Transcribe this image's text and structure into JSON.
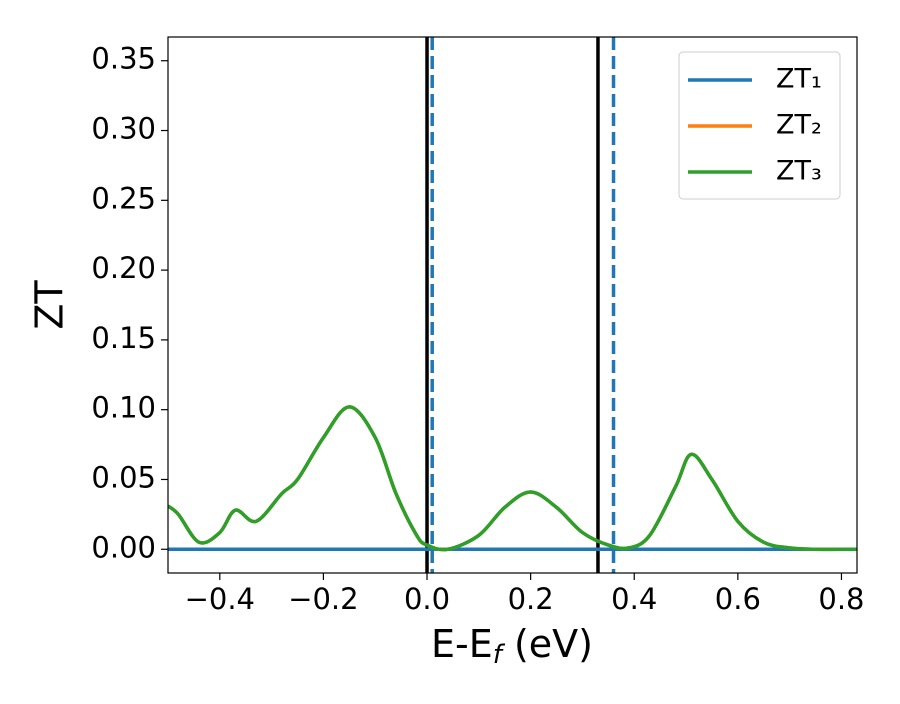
{
  "chart_data": {
    "type": "line",
    "xlabel": {
      "text": "E-E",
      "sub": "f",
      "rest": " (eV)"
    },
    "ylabel": "ZT",
    "x": [
      -0.5,
      -0.48,
      -0.44,
      -0.4,
      -0.37,
      -0.33,
      -0.28,
      -0.25,
      -0.2,
      -0.15,
      -0.1,
      -0.06,
      -0.02,
      0.0,
      0.04,
      0.1,
      0.15,
      0.2,
      0.25,
      0.3,
      0.35,
      0.39,
      0.43,
      0.48,
      0.51,
      0.55,
      0.6,
      0.65,
      0.7,
      0.75,
      0.83
    ],
    "series": [
      {
        "name": "ZT₁",
        "color": "#1f77b4",
        "values": [
          0,
          0,
          0,
          0,
          0,
          0,
          0,
          0,
          0,
          0,
          0,
          0,
          0,
          0,
          0,
          0,
          0,
          0,
          0,
          0,
          0,
          0,
          0,
          0,
          0,
          0,
          0,
          0,
          0,
          0,
          0
        ]
      },
      {
        "name": "ZT₂",
        "color": "#ff7f0e",
        "values": [
          0.031,
          0.025,
          0.005,
          0.012,
          0.028,
          0.02,
          0.04,
          0.05,
          0.08,
          0.102,
          0.08,
          0.04,
          0.01,
          0.003,
          0.0,
          0.01,
          0.03,
          0.041,
          0.03,
          0.012,
          0.003,
          0.001,
          0.01,
          0.045,
          0.068,
          0.05,
          0.02,
          0.005,
          0.001,
          0.0,
          0.0
        ]
      },
      {
        "name": "ZT₃",
        "color": "#2ca02c",
        "values": [
          0.031,
          0.025,
          0.005,
          0.012,
          0.028,
          0.02,
          0.04,
          0.05,
          0.08,
          0.102,
          0.08,
          0.04,
          0.01,
          0.003,
          0.0,
          0.01,
          0.03,
          0.041,
          0.03,
          0.012,
          0.003,
          0.001,
          0.01,
          0.045,
          0.068,
          0.05,
          0.02,
          0.005,
          0.001,
          0.0,
          0.0
        ]
      }
    ],
    "vlines": [
      {
        "x": 0.0,
        "color": "#000000",
        "style": "solid"
      },
      {
        "x": 0.33,
        "color": "#000000",
        "style": "solid"
      },
      {
        "x": 0.01,
        "color": "#1f77b4",
        "style": "dashed"
      },
      {
        "x": 0.36,
        "color": "#1f77b4",
        "style": "dashed"
      }
    ],
    "xlim": [
      -0.5,
      0.83
    ],
    "ylim": [
      -0.017,
      0.367
    ],
    "xticks": [
      {
        "value": -0.4,
        "label": "−0.4"
      },
      {
        "value": -0.2,
        "label": "−0.2"
      },
      {
        "value": 0.0,
        "label": "0.0"
      },
      0.2,
      0.4,
      0.6,
      0.8
    ],
    "yticks": [
      {
        "value": 0,
        "label": "0.00"
      },
      {
        "value": 0.05,
        "label": "0.05"
      },
      {
        "value": 0.1,
        "label": "0.10"
      },
      {
        "value": 0.15,
        "label": "0.15"
      },
      {
        "value": 0.2,
        "label": "0.20"
      },
      {
        "value": 0.25,
        "label": "0.25"
      },
      {
        "value": 0.3,
        "label": "0.30"
      },
      {
        "value": 0.35,
        "label": "0.35"
      }
    ],
    "legend": "upper right"
  }
}
